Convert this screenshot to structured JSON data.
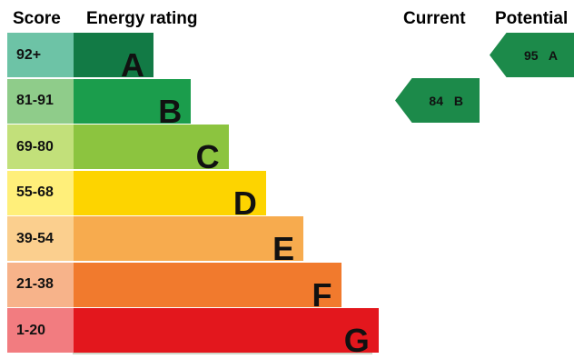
{
  "headers": {
    "score": "Score",
    "rating": "Energy rating",
    "current": "Current",
    "potential": "Potential"
  },
  "chart_data": {
    "type": "bar",
    "categories": [
      "A",
      "B",
      "C",
      "D",
      "E",
      "F",
      "G"
    ],
    "score_ranges": [
      "92+",
      "81-91",
      "69-80",
      "55-68",
      "39-54",
      "21-38",
      "1-20"
    ],
    "colors": {
      "score_column": [
        "#6dc3a6",
        "#8fcc8a",
        "#c2e07a",
        "#ffef7a",
        "#fbcf8e",
        "#f7b38a",
        "#f27c80"
      ],
      "bars": [
        "#127a45",
        "#1b9d4c",
        "#8cc43f",
        "#fdd400",
        "#f7ab4e",
        "#f17a2d",
        "#e3171d"
      ],
      "arrow": "#1c8a4a"
    },
    "current": {
      "value": 84,
      "rating": "B",
      "label": "84 B"
    },
    "potential": {
      "value": 95,
      "rating": "A",
      "label": "95 A"
    }
  }
}
